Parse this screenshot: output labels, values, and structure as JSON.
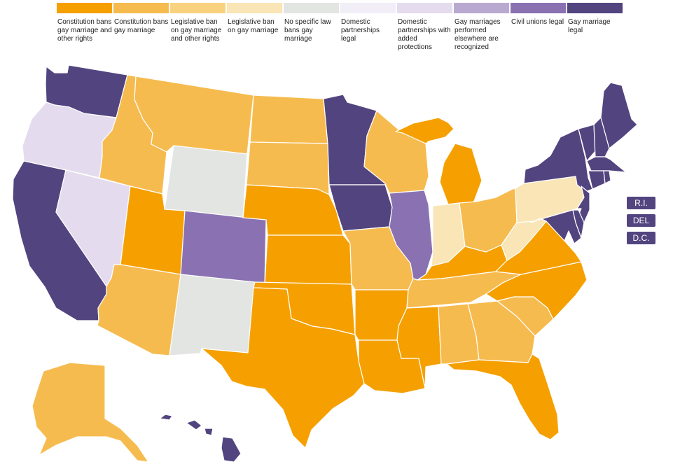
{
  "legend": [
    {
      "id": "c_bans_all",
      "label": "Constitution bans gay marriage and other rights",
      "color": "#f5a000"
    },
    {
      "id": "c_bans",
      "label": "Constitution bans gay marriage",
      "color": "#f6bb4f"
    },
    {
      "id": "l_ban_all",
      "label": "Legislative ban on gay marriage and other rights",
      "color": "#f8d27f"
    },
    {
      "id": "l_ban",
      "label": "Legislative ban on gay marriage",
      "color": "#f9e5b5"
    },
    {
      "id": "no_law",
      "label": "No specific law bans gay marriage",
      "color": "#e3e5e3"
    },
    {
      "id": "dp",
      "label": "Domestic partnerships legal",
      "color": "#f1eef7"
    },
    {
      "id": "dp_plus",
      "label": "Domestic partnerships with added protections",
      "color": "#e4dcee"
    },
    {
      "id": "recog",
      "label": "Gay marriages performed elsewhere are recognized",
      "color": "#b9a9d0"
    },
    {
      "id": "civil",
      "label": "Civil unions legal",
      "color": "#8a72b2"
    },
    {
      "id": "marriage",
      "label": "Gay marriage legal",
      "color": "#52447f"
    }
  ],
  "states": [
    {
      "name": "Washington",
      "status": "marriage"
    },
    {
      "name": "Oregon",
      "status": "dp_plus"
    },
    {
      "name": "California",
      "status": "marriage"
    },
    {
      "name": "Nevada",
      "status": "dp_plus"
    },
    {
      "name": "Idaho",
      "status": "c_bans"
    },
    {
      "name": "Montana",
      "status": "c_bans"
    },
    {
      "name": "Wyoming",
      "status": "no_law"
    },
    {
      "name": "Utah",
      "status": "c_bans_all"
    },
    {
      "name": "Arizona",
      "status": "c_bans"
    },
    {
      "name": "Colorado",
      "status": "civil"
    },
    {
      "name": "New Mexico",
      "status": "no_law"
    },
    {
      "name": "North Dakota",
      "status": "c_bans"
    },
    {
      "name": "South Dakota",
      "status": "c_bans"
    },
    {
      "name": "Nebraska",
      "status": "c_bans_all"
    },
    {
      "name": "Kansas",
      "status": "c_bans_all"
    },
    {
      "name": "Oklahoma",
      "status": "c_bans_all"
    },
    {
      "name": "Texas",
      "status": "c_bans_all"
    },
    {
      "name": "Minnesota",
      "status": "marriage"
    },
    {
      "name": "Iowa",
      "status": "marriage"
    },
    {
      "name": "Missouri",
      "status": "c_bans"
    },
    {
      "name": "Arkansas",
      "status": "c_bans_all"
    },
    {
      "name": "Louisiana",
      "status": "c_bans_all"
    },
    {
      "name": "Wisconsin",
      "status": "c_bans"
    },
    {
      "name": "Illinois",
      "status": "civil"
    },
    {
      "name": "Michigan",
      "status": "c_bans_all"
    },
    {
      "name": "Indiana",
      "status": "l_ban"
    },
    {
      "name": "Ohio",
      "status": "c_bans"
    },
    {
      "name": "Kentucky",
      "status": "c_bans_all"
    },
    {
      "name": "Tennessee",
      "status": "c_bans"
    },
    {
      "name": "Mississippi",
      "status": "c_bans_all"
    },
    {
      "name": "Alabama",
      "status": "c_bans"
    },
    {
      "name": "Georgia",
      "status": "c_bans"
    },
    {
      "name": "Florida",
      "status": "c_bans_all"
    },
    {
      "name": "South Carolina",
      "status": "c_bans"
    },
    {
      "name": "North Carolina",
      "status": "c_bans_all"
    },
    {
      "name": "Virginia",
      "status": "c_bans_all"
    },
    {
      "name": "West Virginia",
      "status": "l_ban"
    },
    {
      "name": "Pennsylvania",
      "status": "l_ban"
    },
    {
      "name": "New York",
      "status": "marriage"
    },
    {
      "name": "New Jersey",
      "status": "marriage"
    },
    {
      "name": "Maryland",
      "status": "marriage"
    },
    {
      "name": "Delaware",
      "status": "marriage"
    },
    {
      "name": "Vermont",
      "status": "marriage"
    },
    {
      "name": "New Hampshire",
      "status": "marriage"
    },
    {
      "name": "Maine",
      "status": "marriage"
    },
    {
      "name": "Massachusetts",
      "status": "marriage"
    },
    {
      "name": "Connecticut",
      "status": "marriage"
    },
    {
      "name": "Rhode Island",
      "status": "marriage"
    },
    {
      "name": "Alaska",
      "status": "c_bans"
    },
    {
      "name": "Hawaii",
      "status": "marriage"
    }
  ],
  "badges": [
    {
      "label": "R.I.",
      "status": "marriage"
    },
    {
      "label": "DEL",
      "status": "marriage"
    },
    {
      "label": "D.C.",
      "status": "marriage"
    }
  ]
}
